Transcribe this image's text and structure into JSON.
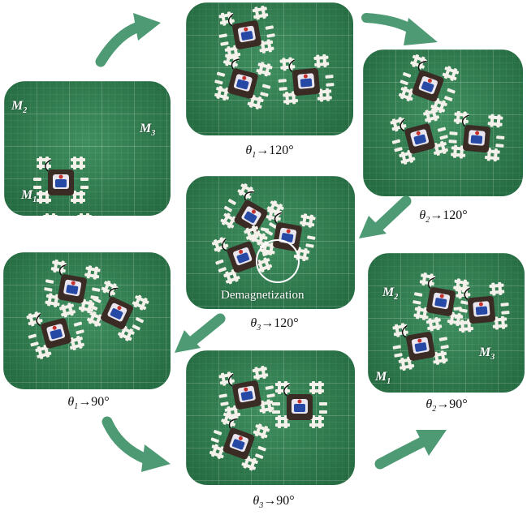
{
  "panels": [
    {
      "id": "initial",
      "caption": null
    },
    {
      "id": "p1",
      "caption": {
        "var": "θ",
        "sub": "1",
        "value": "→120°"
      }
    },
    {
      "id": "p2",
      "caption": {
        "var": "θ",
        "sub": "2",
        "value": "→120°"
      }
    },
    {
      "id": "p3",
      "caption": {
        "var": "θ",
        "sub": "3",
        "value": "→120°"
      }
    },
    {
      "id": "p4",
      "caption": {
        "var": "θ",
        "sub": "1",
        "value": "→90°"
      }
    },
    {
      "id": "p5",
      "caption": {
        "var": "θ",
        "sub": "3",
        "value": "→90°"
      }
    },
    {
      "id": "p6",
      "caption": {
        "var": "θ",
        "sub": "2",
        "value": "→90°"
      }
    }
  ],
  "module_labels": {
    "m1": {
      "main": "M",
      "sub": "1"
    },
    "m2": {
      "main": "M",
      "sub": "2"
    },
    "m3": {
      "main": "M",
      "sub": "3"
    }
  },
  "annotation": {
    "demagnetization": "Demagnetization"
  },
  "colors": {
    "mat": "#2f8552",
    "arrow": "#4e9a74",
    "frame": "#f4f1ea",
    "caption": "#111111"
  }
}
